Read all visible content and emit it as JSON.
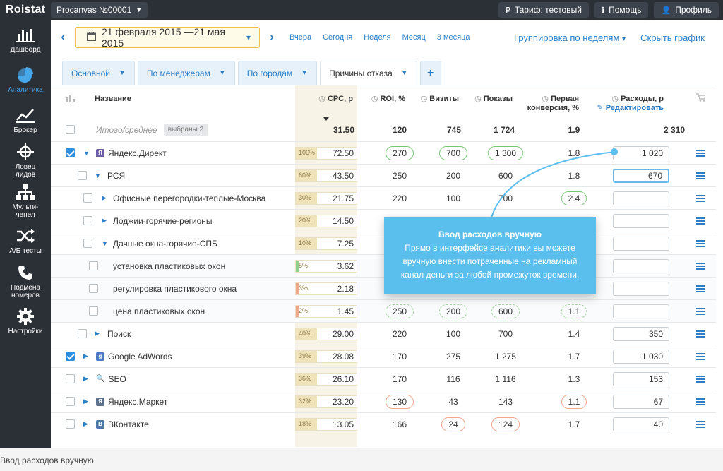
{
  "app": {
    "logo": "Roistat"
  },
  "topbar": {
    "project": "Procanvas №00001",
    "tariff": "Тариф: тестовый",
    "help": "Помощь",
    "profile": "Профиль"
  },
  "sidebar": {
    "items": [
      {
        "label1": "Дашборд",
        "label2": "",
        "icon": "bar-chart-icon"
      },
      {
        "label1": "Аналитика",
        "label2": "",
        "icon": "pie-chart-icon"
      },
      {
        "label1": "Брокер",
        "label2": "",
        "icon": "line-chart-icon"
      },
      {
        "label1": "Ловец",
        "label2": "лидов",
        "icon": "crosshair-icon"
      },
      {
        "label1": "Мульти-",
        "label2": "ченел",
        "icon": "hierarchy-icon"
      },
      {
        "label1": "А/Б тесты",
        "label2": "",
        "icon": "shuffle-icon"
      },
      {
        "label1": "Подмена",
        "label2": "номеров",
        "icon": "phone-icon"
      },
      {
        "label1": "Настройки",
        "label2": "",
        "icon": "gear-icon"
      }
    ]
  },
  "header": {
    "date_range": "21 февраля 2015 —21 мая 2015",
    "periods": [
      "Вчера",
      "Сегодня",
      "Неделя",
      "Месяц",
      "3 месяца"
    ],
    "grouping": "Группировка по неделям",
    "hide_chart": "Скрыть график"
  },
  "tabs": [
    {
      "label": "Основной"
    },
    {
      "label": "По менеджерам"
    },
    {
      "label": "По городам"
    },
    {
      "label": "Причины отказа"
    }
  ],
  "columns": {
    "name": "Название",
    "cpc": "CPC, р",
    "roi": "ROI, %",
    "visits": "Визиты",
    "shows": "Показы",
    "conv1": "Первая",
    "conv2": "конверсия, %",
    "expenses": "Расходы, р",
    "edit": "Редактировать"
  },
  "total": {
    "label": "Итого/среднее",
    "selected": "выбраны 2",
    "cpc": "31.50",
    "roi": "120",
    "visits": "745",
    "shows": "1 724",
    "conv": "1.9",
    "expenses": "2 310"
  },
  "rows": [
    {
      "name": "Яндекс.Директ",
      "pct": "100%",
      "cpc": "72.50",
      "roi": "270",
      "visits": "700",
      "shows": "1 300",
      "conv": "1.8",
      "expenses": "1 020"
    },
    {
      "name": "РСЯ",
      "pct": "60%",
      "cpc": "43.50",
      "roi": "250",
      "visits": "200",
      "shows": "600",
      "conv": "1.8",
      "expenses": "670"
    },
    {
      "name": "Офисные перегородки-теплые-Москва",
      "pct": "30%",
      "cpc": "21.75",
      "roi": "220",
      "visits": "100",
      "shows": "700",
      "conv": "2.4",
      "expenses": ""
    },
    {
      "name": "Лоджии-горячие-регионы",
      "pct": "20%",
      "cpc": "14.50",
      "roi": "",
      "visits": "",
      "shows": "",
      "conv": "",
      "expenses": ""
    },
    {
      "name": "Дачные окна-горячие-СПБ",
      "pct": "10%",
      "cpc": "7.25",
      "roi": "",
      "visits": "",
      "shows": "",
      "conv": "",
      "expenses": ""
    },
    {
      "name": "установка пластиковых окон",
      "pct": "5%",
      "cpc": "3.62",
      "roi": "",
      "visits": "",
      "shows": "",
      "conv": "",
      "expenses": ""
    },
    {
      "name": "регулировка пластикового окна",
      "pct": "3%",
      "cpc": "2.18",
      "roi": "",
      "visits": "",
      "shows": "",
      "conv": "",
      "expenses": ""
    },
    {
      "name": "цена пластиковых окон",
      "pct": "2%",
      "cpc": "1.45",
      "roi": "250",
      "visits": "200",
      "shows": "600",
      "conv": "1.1",
      "expenses": ""
    },
    {
      "name": "Поиск",
      "pct": "40%",
      "cpc": "29.00",
      "roi": "220",
      "visits": "100",
      "shows": "700",
      "conv": "1.4",
      "expenses": "350"
    },
    {
      "name": "Google AdWords",
      "pct": "39%",
      "cpc": "28.08",
      "roi": "170",
      "visits": "275",
      "shows": "1 275",
      "conv": "1.7",
      "expenses": "1 030"
    },
    {
      "name": "SEO",
      "pct": "36%",
      "cpc": "26.10",
      "roi": "170",
      "visits": "116",
      "shows": "1 116",
      "conv": "1.3",
      "expenses": "153"
    },
    {
      "name": "Яндекс.Маркет",
      "pct": "32%",
      "cpc": "23.20",
      "roi": "130",
      "visits": "43",
      "shows": "143",
      "conv": "1.1",
      "expenses": "67"
    },
    {
      "name": "ВКонтакте",
      "pct": "18%",
      "cpc": "13.05",
      "roi": "166",
      "visits": "24",
      "shows": "124",
      "conv": "1.7",
      "expenses": "40"
    }
  ],
  "callout": {
    "title": "Ввод расходов вручную",
    "line1": "Прямо в интерфейсе аналитики вы можете",
    "line2": "вручную внести потраченные на рекламный",
    "line3": "канал деньги за любой промежуток времени."
  },
  "caption": "Ввод расходов вручную"
}
